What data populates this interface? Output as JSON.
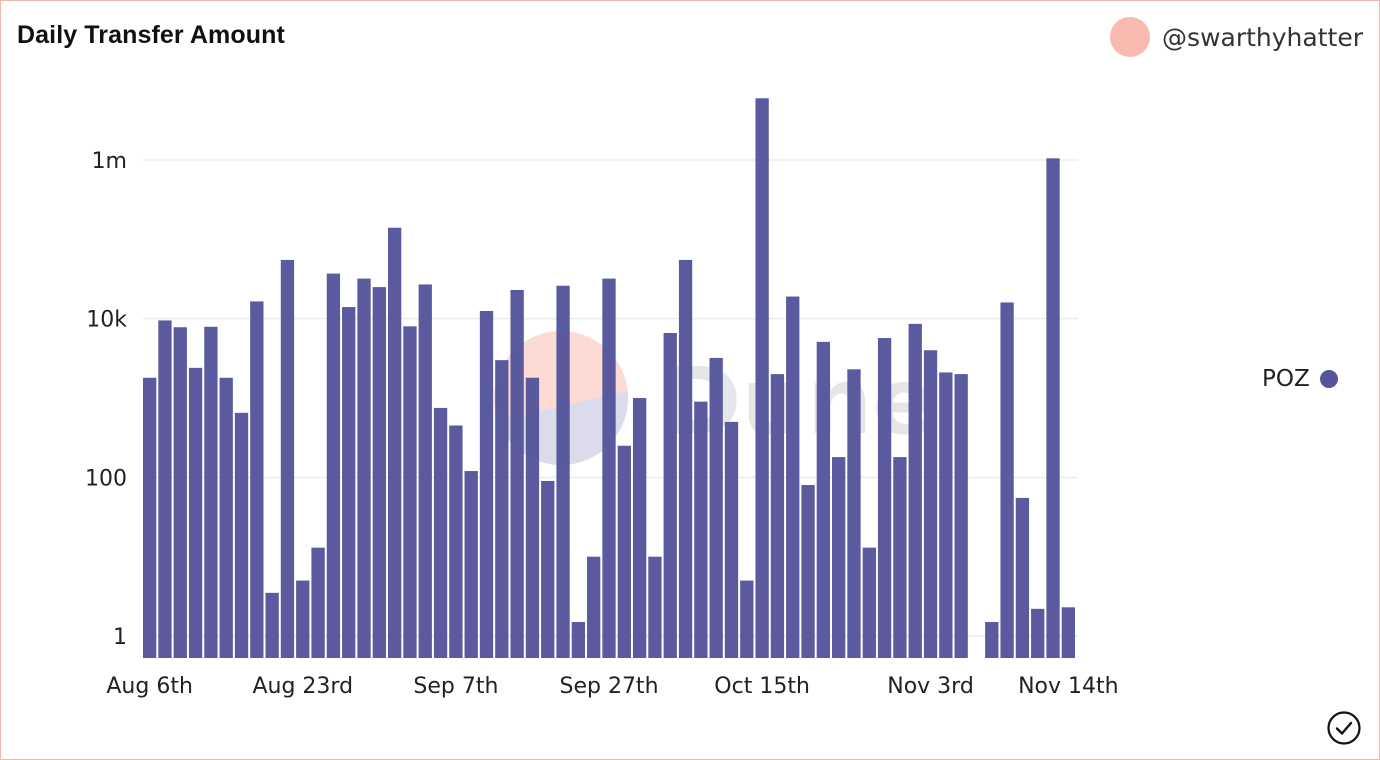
{
  "header": {
    "title": "Daily Transfer Amount",
    "author": "@swarthyhatter"
  },
  "colors": {
    "bar": "#55559b",
    "avatar": "#f8b9ae",
    "grid": "#ececec",
    "frame_border": "#f4b8b0"
  },
  "watermark": {
    "text": "Dune"
  },
  "legend": {
    "label": "POZ",
    "placement": "right"
  },
  "icons": {
    "check": "check-circle-icon"
  },
  "chart_data": {
    "type": "bar",
    "title": "Daily Transfer Amount",
    "y_scale": "log",
    "ylim": [
      0.4,
      6000000
    ],
    "y_ticks": [
      {
        "value": 1,
        "label": "1"
      },
      {
        "value": 100,
        "label": "100"
      },
      {
        "value": 10000,
        "label": "10k"
      },
      {
        "value": 1000000,
        "label": "1m"
      }
    ],
    "x_tick_labels": [
      "Aug 6th",
      "Aug 23rd",
      "Sep 7th",
      "Sep 27th",
      "Oct 15th",
      "Nov 3rd",
      "Nov 14th"
    ],
    "x_tick_indices": [
      0,
      10,
      20,
      30,
      40,
      51,
      60
    ],
    "grid": true,
    "series": [
      {
        "name": "POZ",
        "values": [
          1800,
          9500,
          7800,
          2400,
          7900,
          1800,
          650,
          16500,
          3.5,
          55000,
          5,
          13,
          37000,
          14000,
          32000,
          25000,
          140000,
          8000,
          27000,
          750,
          450,
          120,
          12500,
          3000,
          23000,
          1800,
          90,
          26000,
          1.5,
          10,
          32000,
          250,
          1000,
          10,
          6600,
          55000,
          900,
          3200,
          500,
          5,
          6000000,
          2000,
          19000,
          80,
          5100,
          180,
          2300,
          13,
          5700,
          180,
          8600,
          4000,
          2100,
          2000,
          null,
          1.5,
          16000,
          55,
          2.2,
          1050000,
          2.3
        ]
      }
    ]
  }
}
